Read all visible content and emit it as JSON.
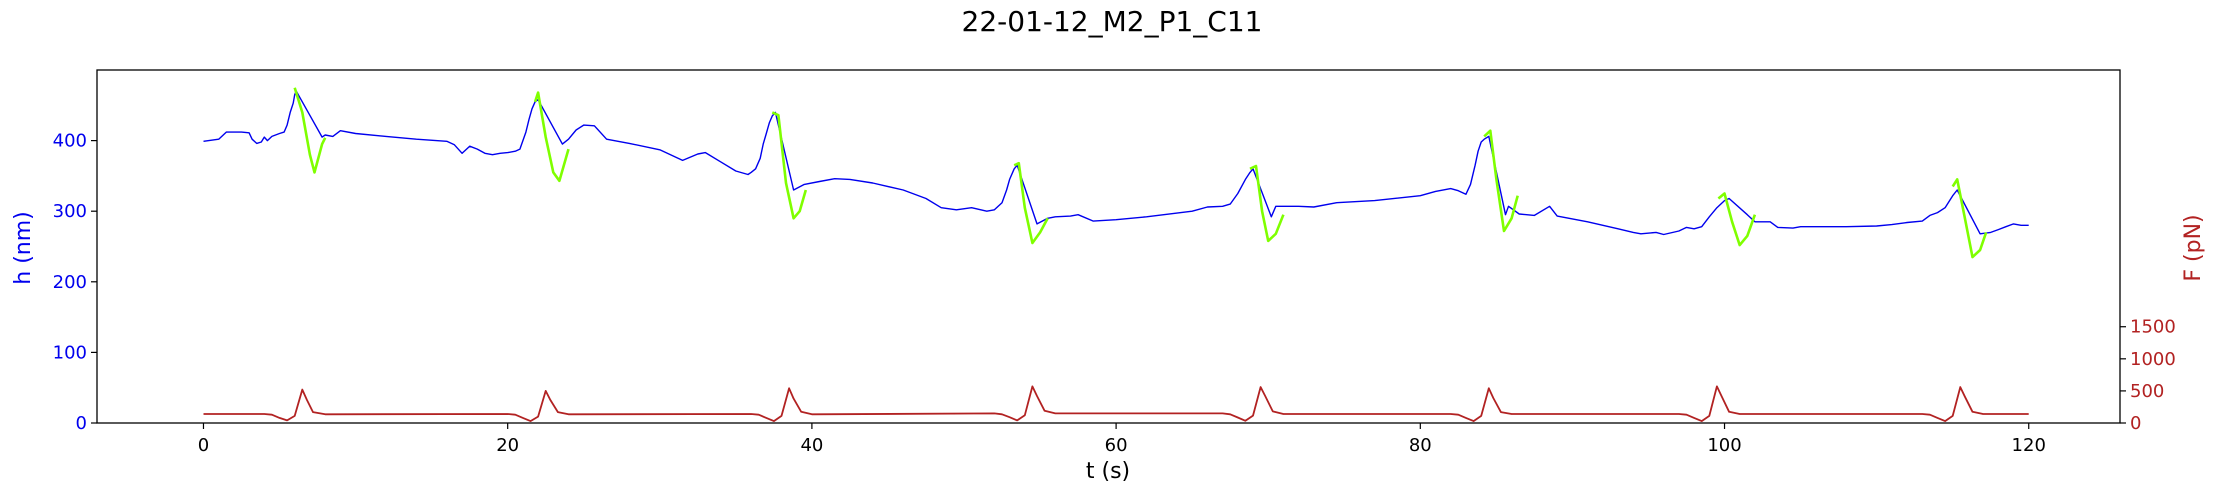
{
  "chart_data": {
    "type": "line",
    "title": "22-01-12_M2_P1_C11",
    "xlabel": "t (s)",
    "ylabel_left": "h (nm)",
    "ylabel_right": "F (pN)",
    "xlim": [
      -7,
      126
    ],
    "ylim_left": [
      0,
      500
    ],
    "ylim_right": [
      0,
      5500
    ],
    "xticks": [
      0,
      20,
      40,
      60,
      80,
      100,
      120
    ],
    "yticks_left": [
      0,
      100,
      200,
      300,
      400
    ],
    "yticks_right": [
      0,
      500,
      1000,
      1500
    ],
    "grid": false,
    "colors": {
      "height": "#0000ee",
      "compression": "#7fff00",
      "force": "#b22222",
      "axes": "#000000"
    },
    "series": [
      {
        "axis": "left",
        "points": [
          [
            0,
            399
          ],
          [
            1,
            402
          ],
          [
            1.5,
            412
          ],
          [
            2.5,
            412
          ],
          [
            3,
            411
          ],
          [
            3.2,
            402
          ],
          [
            3.5,
            396
          ],
          [
            3.8,
            398
          ],
          [
            4,
            405
          ],
          [
            4.2,
            400
          ],
          [
            4.5,
            406
          ],
          [
            5,
            410
          ],
          [
            5.3,
            412
          ],
          [
            5.5,
            422
          ],
          [
            5.7,
            440
          ],
          [
            5.9,
            453
          ],
          [
            6,
            465
          ],
          [
            6.1,
            470
          ],
          [
            7.8,
            405
          ],
          [
            8,
            408
          ],
          [
            8.5,
            406
          ],
          [
            9,
            414
          ],
          [
            10,
            410
          ],
          [
            12,
            406
          ],
          [
            14,
            402
          ],
          [
            16,
            399
          ],
          [
            16.5,
            394
          ],
          [
            17,
            382
          ],
          [
            17.5,
            392
          ],
          [
            18,
            388
          ],
          [
            18.5,
            382
          ],
          [
            19,
            380
          ],
          [
            19.5,
            382
          ],
          [
            20,
            383
          ],
          [
            20.5,
            385
          ],
          [
            20.8,
            388
          ],
          [
            21,
            400
          ],
          [
            21.2,
            412
          ],
          [
            21.4,
            430
          ],
          [
            21.6,
            445
          ],
          [
            21.8,
            455
          ],
          [
            22,
            458
          ],
          [
            23.6,
            395
          ],
          [
            24,
            402
          ],
          [
            24.5,
            415
          ],
          [
            25,
            422
          ],
          [
            25.7,
            421
          ],
          [
            26.5,
            402
          ],
          [
            28,
            396
          ],
          [
            30,
            387
          ],
          [
            31.5,
            372
          ],
          [
            32.5,
            381
          ],
          [
            33,
            383
          ],
          [
            34,
            370
          ],
          [
            35,
            357
          ],
          [
            35.8,
            352
          ],
          [
            36,
            355
          ],
          [
            36.3,
            360
          ],
          [
            36.6,
            375
          ],
          [
            36.8,
            395
          ],
          [
            37,
            410
          ],
          [
            37.2,
            425
          ],
          [
            37.4,
            435
          ],
          [
            37.6,
            440
          ],
          [
            38.8,
            330
          ],
          [
            39.5,
            338
          ],
          [
            40.5,
            342
          ],
          [
            41.5,
            346
          ],
          [
            42.5,
            345
          ],
          [
            44,
            340
          ],
          [
            46,
            330
          ],
          [
            47.5,
            318
          ],
          [
            48.5,
            305
          ],
          [
            49.5,
            302
          ],
          [
            50.5,
            305
          ],
          [
            51.5,
            300
          ],
          [
            52,
            302
          ],
          [
            52.5,
            312
          ],
          [
            52.8,
            330
          ],
          [
            53,
            345
          ],
          [
            53.3,
            360
          ],
          [
            53.5,
            365
          ],
          [
            54.8,
            282
          ],
          [
            55.5,
            290
          ],
          [
            56,
            292
          ],
          [
            57,
            293
          ],
          [
            57.5,
            295
          ],
          [
            58.5,
            286
          ],
          [
            60,
            288
          ],
          [
            62,
            292
          ],
          [
            65,
            300
          ],
          [
            66,
            306
          ],
          [
            67,
            307
          ],
          [
            67.5,
            310
          ],
          [
            68,
            325
          ],
          [
            68.5,
            345
          ],
          [
            68.8,
            355
          ],
          [
            69,
            360
          ],
          [
            70.2,
            292
          ],
          [
            70.5,
            307
          ],
          [
            72,
            307
          ],
          [
            73,
            306
          ],
          [
            74.5,
            312
          ],
          [
            77,
            315
          ],
          [
            80,
            322
          ],
          [
            81,
            328
          ],
          [
            82,
            332
          ],
          [
            82.5,
            329
          ],
          [
            83,
            324
          ],
          [
            83.3,
            338
          ],
          [
            83.6,
            365
          ],
          [
            83.8,
            385
          ],
          [
            84,
            398
          ],
          [
            84.2,
            402
          ],
          [
            84.5,
            406
          ],
          [
            85.6,
            295
          ],
          [
            85.8,
            307
          ],
          [
            86.5,
            296
          ],
          [
            87.5,
            294
          ],
          [
            88.5,
            307
          ],
          [
            89,
            293
          ],
          [
            91,
            285
          ],
          [
            93,
            275
          ],
          [
            94,
            270
          ],
          [
            94.5,
            268
          ],
          [
            95.5,
            270
          ],
          [
            96,
            267
          ],
          [
            97,
            272
          ],
          [
            97.5,
            277
          ],
          [
            98,
            275
          ],
          [
            98.5,
            278
          ],
          [
            99,
            292
          ],
          [
            99.5,
            305
          ],
          [
            100,
            315
          ],
          [
            100.3,
            318
          ],
          [
            101.5,
            295
          ],
          [
            102,
            285
          ],
          [
            103,
            285
          ],
          [
            103.5,
            277
          ],
          [
            104.5,
            276
          ],
          [
            105,
            278
          ],
          [
            108,
            278
          ],
          [
            110,
            279
          ],
          [
            111,
            281
          ],
          [
            112,
            284
          ],
          [
            113,
            286
          ],
          [
            113.5,
            294
          ],
          [
            114,
            298
          ],
          [
            114.5,
            305
          ],
          [
            114.8,
            315
          ],
          [
            115,
            322
          ],
          [
            115.3,
            330
          ],
          [
            116.8,
            268
          ],
          [
            117.5,
            270
          ],
          [
            118,
            274
          ],
          [
            118.5,
            278
          ],
          [
            119,
            282
          ],
          [
            119.5,
            280
          ],
          [
            120,
            280
          ]
        ]
      },
      {
        "axis": "left",
        "color_role": "compression",
        "segments": [
          [
            [
              6,
              475
            ],
            [
              6.5,
              440
            ],
            [
              7,
              380
            ],
            [
              7.3,
              355
            ],
            [
              7.8,
              395
            ],
            [
              8,
              404
            ]
          ],
          [
            [
              21.8,
              455
            ],
            [
              22,
              468
            ],
            [
              22.5,
              405
            ],
            [
              23,
              355
            ],
            [
              23.4,
              343
            ],
            [
              24,
              388
            ]
          ],
          [
            [
              37.4,
              440
            ],
            [
              37.8,
              436
            ],
            [
              38.3,
              340
            ],
            [
              38.8,
              290
            ],
            [
              39.2,
              300
            ],
            [
              39.6,
              330
            ]
          ],
          [
            [
              53.3,
              365
            ],
            [
              53.6,
              368
            ],
            [
              54,
              305
            ],
            [
              54.5,
              255
            ],
            [
              55,
              270
            ],
            [
              55.5,
              290
            ]
          ],
          [
            [
              68.8,
              360
            ],
            [
              69.2,
              364
            ],
            [
              69.6,
              300
            ],
            [
              70,
              258
            ],
            [
              70.5,
              268
            ],
            [
              71,
              295
            ]
          ],
          [
            [
              84.2,
              406
            ],
            [
              84.6,
              414
            ],
            [
              85,
              345
            ],
            [
              85.5,
              272
            ],
            [
              86,
              290
            ],
            [
              86.4,
              322
            ]
          ],
          [
            [
              99.6,
              318
            ],
            [
              100,
              325
            ],
            [
              100.5,
              285
            ],
            [
              101,
              252
            ],
            [
              101.5,
              265
            ],
            [
              102,
              295
            ]
          ],
          [
            [
              115,
              335
            ],
            [
              115.3,
              345
            ],
            [
              115.8,
              290
            ],
            [
              116.3,
              235
            ],
            [
              116.8,
              245
            ],
            [
              117.2,
              270
            ]
          ]
        ]
      },
      {
        "axis": "right",
        "points": [
          [
            0,
            140
          ],
          [
            4,
            140
          ],
          [
            4.5,
            130
          ],
          [
            5,
            80
          ],
          [
            5.5,
            40
          ],
          [
            6,
            110
          ],
          [
            6.5,
            520
          ],
          [
            6.8,
            360
          ],
          [
            7.2,
            170
          ],
          [
            8,
            135
          ],
          [
            20,
            140
          ],
          [
            20.5,
            130
          ],
          [
            21,
            80
          ],
          [
            21.5,
            30
          ],
          [
            22,
            100
          ],
          [
            22.5,
            500
          ],
          [
            22.8,
            360
          ],
          [
            23.3,
            170
          ],
          [
            24,
            135
          ],
          [
            36,
            140
          ],
          [
            36.5,
            130
          ],
          [
            37,
            80
          ],
          [
            37.5,
            30
          ],
          [
            38,
            110
          ],
          [
            38.5,
            540
          ],
          [
            38.8,
            380
          ],
          [
            39.3,
            175
          ],
          [
            40,
            135
          ],
          [
            52,
            150
          ],
          [
            52.5,
            135
          ],
          [
            53,
            90
          ],
          [
            53.5,
            40
          ],
          [
            54,
            120
          ],
          [
            54.5,
            570
          ],
          [
            54.8,
            420
          ],
          [
            55.3,
            190
          ],
          [
            56,
            150
          ],
          [
            67,
            150
          ],
          [
            67.5,
            135
          ],
          [
            68,
            85
          ],
          [
            68.5,
            35
          ],
          [
            69,
            115
          ],
          [
            69.5,
            560
          ],
          [
            69.8,
            420
          ],
          [
            70.3,
            180
          ],
          [
            71,
            140
          ],
          [
            82,
            140
          ],
          [
            82.5,
            130
          ],
          [
            83,
            80
          ],
          [
            83.5,
            30
          ],
          [
            84,
            110
          ],
          [
            84.5,
            540
          ],
          [
            84.8,
            390
          ],
          [
            85.3,
            170
          ],
          [
            86,
            140
          ],
          [
            97,
            140
          ],
          [
            97.5,
            130
          ],
          [
            98,
            80
          ],
          [
            98.5,
            30
          ],
          [
            99,
            110
          ],
          [
            99.5,
            570
          ],
          [
            99.8,
            420
          ],
          [
            100.3,
            175
          ],
          [
            101,
            140
          ],
          [
            113,
            140
          ],
          [
            113.5,
            130
          ],
          [
            114,
            80
          ],
          [
            114.5,
            30
          ],
          [
            115,
            110
          ],
          [
            115.5,
            560
          ],
          [
            115.8,
            410
          ],
          [
            116.3,
            175
          ],
          [
            117,
            140
          ],
          [
            120,
            140
          ]
        ]
      }
    ]
  }
}
